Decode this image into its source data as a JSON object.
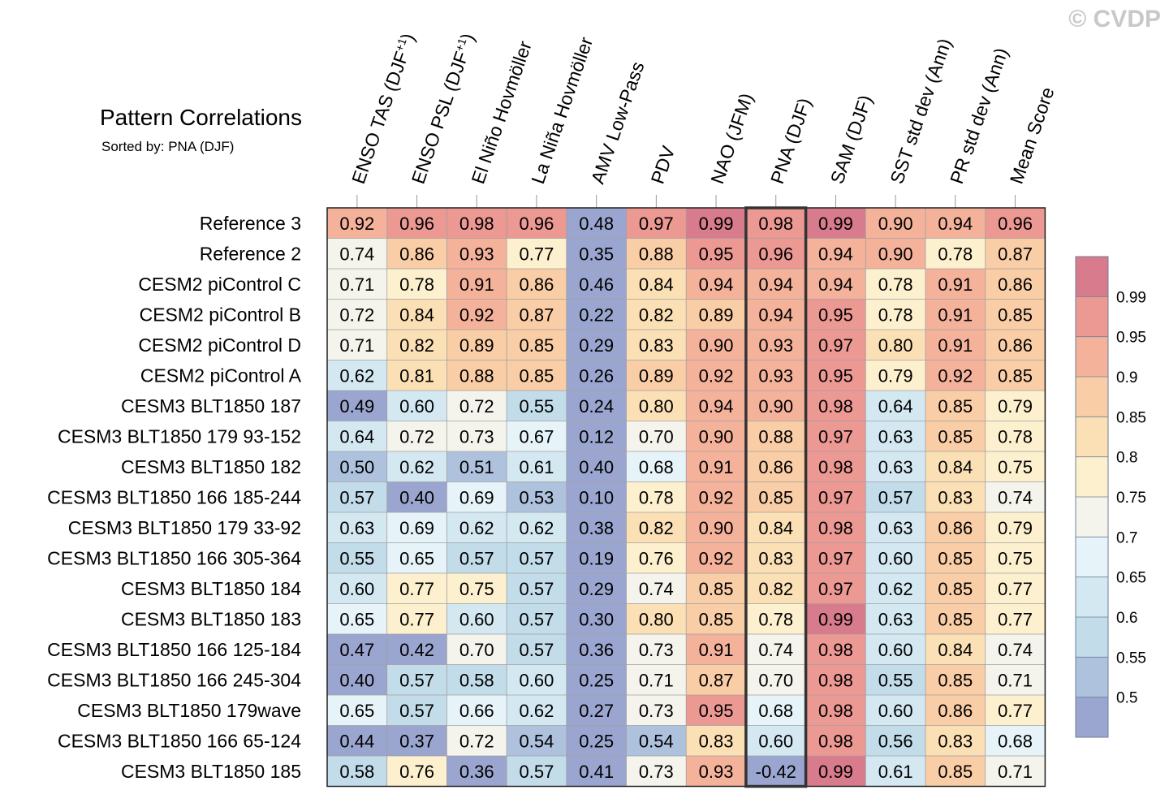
{
  "chart_data": {
    "type": "heatmap",
    "title": "Pattern Correlations",
    "subtitle": "Sorted by: PNA (DJF)",
    "watermark": "© CVDP",
    "sorted_by": "PNA (DJF)",
    "columns": [
      {
        "name": "ENSO TAS (DJF",
        "sup": "+1",
        "close": ")"
      },
      {
        "name": "ENSO PSL (DJF",
        "sup": "+1",
        "close": ")"
      },
      {
        "name": "El Niño Hovmöller",
        "sup": "",
        "close": ""
      },
      {
        "name": "La Niña Hovmöller",
        "sup": "",
        "close": ""
      },
      {
        "name": "AMV Low-Pass",
        "sup": "",
        "close": ""
      },
      {
        "name": "PDV",
        "sup": "",
        "close": ""
      },
      {
        "name": "NAO (JFM)",
        "sup": "",
        "close": ""
      },
      {
        "name": "PNA (DJF)",
        "sup": "",
        "close": ""
      },
      {
        "name": "SAM (DJF)",
        "sup": "",
        "close": ""
      },
      {
        "name": "SST std dev (Ann)",
        "sup": "",
        "close": ""
      },
      {
        "name": "PR std dev (Ann)",
        "sup": "",
        "close": ""
      },
      {
        "name": "Mean Score",
        "sup": "",
        "close": ""
      }
    ],
    "rows": [
      {
        "name": "Reference 3",
        "values": [
          "0.92",
          "0.96",
          "0.98",
          "0.96",
          "0.48",
          "0.97",
          "0.99",
          "0.98",
          "0.99",
          "0.90",
          "0.94",
          "0.96"
        ]
      },
      {
        "name": "Reference 2",
        "values": [
          "0.74",
          "0.86",
          "0.93",
          "0.77",
          "0.35",
          "0.88",
          "0.95",
          "0.96",
          "0.94",
          "0.90",
          "0.78",
          "0.87"
        ]
      },
      {
        "name": "CESM2 piControl C",
        "values": [
          "0.71",
          "0.78",
          "0.91",
          "0.86",
          "0.46",
          "0.84",
          "0.94",
          "0.94",
          "0.94",
          "0.78",
          "0.91",
          "0.86"
        ]
      },
      {
        "name": "CESM2 piControl B",
        "values": [
          "0.72",
          "0.84",
          "0.92",
          "0.87",
          "0.22",
          "0.82",
          "0.89",
          "0.94",
          "0.95",
          "0.78",
          "0.91",
          "0.85"
        ]
      },
      {
        "name": "CESM2 piControl D",
        "values": [
          "0.71",
          "0.82",
          "0.89",
          "0.85",
          "0.29",
          "0.83",
          "0.90",
          "0.93",
          "0.97",
          "0.80",
          "0.91",
          "0.86"
        ]
      },
      {
        "name": "CESM2 piControl A",
        "values": [
          "0.62",
          "0.81",
          "0.88",
          "0.85",
          "0.26",
          "0.89",
          "0.92",
          "0.93",
          "0.95",
          "0.79",
          "0.92",
          "0.85"
        ]
      },
      {
        "name": "CESM3 BLT1850 187",
        "values": [
          "0.49",
          "0.60",
          "0.72",
          "0.55",
          "0.24",
          "0.80",
          "0.94",
          "0.90",
          "0.98",
          "0.64",
          "0.85",
          "0.79"
        ]
      },
      {
        "name": "CESM3 BLT1850 179 93-152",
        "values": [
          "0.64",
          "0.72",
          "0.73",
          "0.67",
          "0.12",
          "0.70",
          "0.90",
          "0.88",
          "0.97",
          "0.63",
          "0.85",
          "0.78"
        ]
      },
      {
        "name": "CESM3 BLT1850 182",
        "values": [
          "0.50",
          "0.62",
          "0.51",
          "0.61",
          "0.40",
          "0.68",
          "0.91",
          "0.86",
          "0.98",
          "0.63",
          "0.84",
          "0.75"
        ]
      },
      {
        "name": "CESM3 BLT1850 166 185-244",
        "values": [
          "0.57",
          "0.40",
          "0.69",
          "0.53",
          "0.10",
          "0.78",
          "0.92",
          "0.85",
          "0.97",
          "0.57",
          "0.83",
          "0.74"
        ]
      },
      {
        "name": "CESM3 BLT1850 179 33-92",
        "values": [
          "0.63",
          "0.69",
          "0.62",
          "0.62",
          "0.38",
          "0.82",
          "0.90",
          "0.84",
          "0.98",
          "0.63",
          "0.86",
          "0.79"
        ]
      },
      {
        "name": "CESM3 BLT1850 166 305-364",
        "values": [
          "0.55",
          "0.65",
          "0.57",
          "0.57",
          "0.19",
          "0.76",
          "0.92",
          "0.83",
          "0.97",
          "0.60",
          "0.85",
          "0.75"
        ]
      },
      {
        "name": "CESM3 BLT1850 184",
        "values": [
          "0.60",
          "0.77",
          "0.75",
          "0.57",
          "0.29",
          "0.74",
          "0.85",
          "0.82",
          "0.97",
          "0.62",
          "0.85",
          "0.77"
        ]
      },
      {
        "name": "CESM3 BLT1850 183",
        "values": [
          "0.65",
          "0.77",
          "0.60",
          "0.57",
          "0.30",
          "0.80",
          "0.85",
          "0.78",
          "0.99",
          "0.63",
          "0.85",
          "0.77"
        ]
      },
      {
        "name": "CESM3 BLT1850 166 125-184",
        "values": [
          "0.47",
          "0.42",
          "0.70",
          "0.57",
          "0.36",
          "0.73",
          "0.91",
          "0.74",
          "0.98",
          "0.60",
          "0.84",
          "0.74"
        ]
      },
      {
        "name": "CESM3 BLT1850 166 245-304",
        "values": [
          "0.40",
          "0.57",
          "0.58",
          "0.60",
          "0.25",
          "0.71",
          "0.87",
          "0.70",
          "0.98",
          "0.55",
          "0.85",
          "0.71"
        ]
      },
      {
        "name": "CESM3 BLT1850 179wave",
        "values": [
          "0.65",
          "0.57",
          "0.66",
          "0.62",
          "0.27",
          "0.73",
          "0.95",
          "0.68",
          "0.98",
          "0.60",
          "0.86",
          "0.77"
        ]
      },
      {
        "name": "CESM3 BLT1850 166 65-124",
        "values": [
          "0.44",
          "0.37",
          "0.72",
          "0.54",
          "0.25",
          "0.54",
          "0.83",
          "0.60",
          "0.98",
          "0.56",
          "0.83",
          "0.68"
        ]
      },
      {
        "name": "CESM3 BLT1850 185",
        "values": [
          "0.58",
          "0.76",
          "0.36",
          "0.57",
          "0.41",
          "0.73",
          "0.93",
          "-0.42",
          "0.99",
          "0.61",
          "0.85",
          "0.71"
        ]
      }
    ],
    "colorbar": {
      "levels": [
        0.5,
        0.55,
        0.6,
        0.65,
        0.7,
        0.75,
        0.8,
        0.85,
        0.9,
        0.95,
        0.99
      ],
      "labels": [
        "0.5",
        "0.55",
        "0.6",
        "0.65",
        "0.7",
        "0.75",
        "0.8",
        "0.85",
        "0.9",
        "0.95",
        "0.99"
      ],
      "colors": [
        "#9aa6cf",
        "#aec2de",
        "#c2dcea",
        "#d4e8f2",
        "#e6f3f8",
        "#f4f4ec",
        "#fdf0ce",
        "#fbe0b5",
        "#f9cda5",
        "#f4b29b",
        "#ec9893",
        "#d87b8c"
      ]
    }
  }
}
